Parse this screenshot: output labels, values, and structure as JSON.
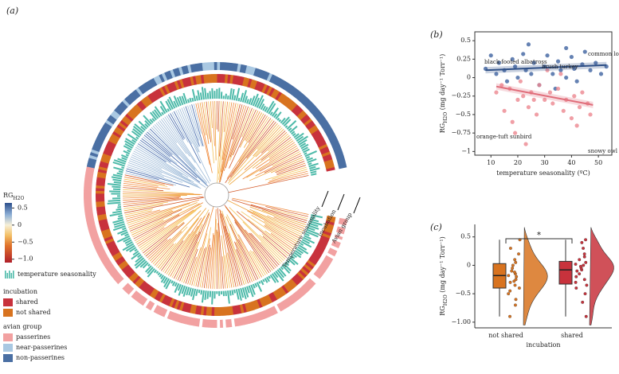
{
  "chart_data": [
    {
      "type": "phylogeny",
      "panel_label": "(a)",
      "legend_title": "RG",
      "legend_title_sub": "H2O",
      "clim": [
        -1.1,
        0.65
      ],
      "cticks": [
        0.5,
        0,
        {
          "value": -0.5,
          "label": "−0.5"
        },
        {
          "value": -1.0,
          "label": "−1.0"
        }
      ],
      "bars_label": "temperature seasonality",
      "bars_color": "#4dbaa9",
      "incubation_title": "incubation",
      "incubation": [
        {
          "name": "shared",
          "color": "#c8323c"
        },
        {
          "name": "not shared",
          "color": "#d8731f"
        }
      ],
      "group_title": "avian group",
      "groups": [
        {
          "name": "passerines",
          "color": "#f2a1a1"
        },
        {
          "name": "near-passerines",
          "color": "#a9c8e2"
        },
        {
          "name": "non-passerines",
          "color": "#4a6fa3"
        }
      ],
      "ring_labels": [
        "Temperature seasonality",
        "incubation",
        "Avian group"
      ]
    },
    {
      "type": "scatter",
      "panel_label": "(b)",
      "ylabel": "RG",
      "ylabel_sub": "H2O",
      "ylabel_unit": " (mg day⁻¹ Torr⁻¹)",
      "xlabel": "temperature seasonality (ºC)",
      "xlim": [
        4,
        55
      ],
      "xticks": [
        10,
        20,
        30,
        40,
        50
      ],
      "ylim": [
        -1.05,
        0.62
      ],
      "yticks": [
        0.5,
        0.25,
        0,
        {
          "value": -0.25,
          "label": "−0.25"
        },
        {
          "value": -0.5,
          "label": "−0.5"
        },
        {
          "value": -0.75,
          "label": "−0.75"
        },
        {
          "value": -1,
          "label": "−1"
        }
      ],
      "series": [
        {
          "color": "#3e63a0",
          "x": [
            8,
            10,
            12,
            13,
            15,
            16,
            18,
            19,
            20,
            22,
            23,
            25,
            26,
            28,
            30,
            31,
            33,
            35,
            36,
            38,
            40,
            41,
            42,
            44,
            45,
            47,
            49,
            51,
            53,
            38,
            34,
            24
          ],
          "values": [
            0.12,
            0.3,
            0.05,
            0.2,
            0.1,
            -0.05,
            0.25,
            0.15,
            0.0,
            0.32,
            0.1,
            0.05,
            0.2,
            -0.1,
            0.15,
            0.3,
            0.05,
            0.22,
            0.1,
            0.0,
            0.28,
            0.12,
            -0.05,
            0.18,
            0.35,
            0.1,
            0.2,
            0.05,
            0.15,
            0.4,
            -0.15,
            0.45
          ]
        },
        {
          "color": "#ec8790",
          "x": [
            12,
            14,
            15,
            17,
            18,
            20,
            21,
            22,
            24,
            25,
            27,
            28,
            30,
            32,
            33,
            35,
            37,
            38,
            40,
            41,
            43,
            44,
            46,
            47,
            19,
            23,
            36,
            42,
            26,
            31
          ],
          "values": [
            -0.2,
            -0.1,
            -0.45,
            -0.15,
            -0.6,
            -0.3,
            -0.05,
            -0.25,
            -0.4,
            -0.2,
            -0.5,
            -0.1,
            -0.3,
            -0.2,
            -0.35,
            -0.15,
            -0.45,
            -0.3,
            -0.55,
            -0.25,
            -0.4,
            -0.2,
            -0.35,
            -0.5,
            -0.75,
            -0.9,
            0.05,
            -0.65,
            -0.3,
            0.1
          ]
        }
      ],
      "lines": [
        {
          "color": "#2e4f86",
          "x": [
            8,
            53
          ],
          "values": [
            0.1,
            0.17
          ]
        },
        {
          "color": "#e06d7a",
          "x": [
            12,
            48
          ],
          "values": [
            -0.12,
            -0.37
          ]
        }
      ],
      "annotations": [
        "black-footed albatross",
        "brush turkey",
        "common loon",
        "orange-tuft sunbird",
        "snowy owl"
      ]
    },
    {
      "type": "box",
      "panel_label": "(c)",
      "ylabel": "RG",
      "ylabel_sub": "H2O",
      "ylabel_unit": " (mg day⁻¹ Torr⁻¹)",
      "xlabel": "incubation",
      "categories": [
        "not shared",
        "shared"
      ],
      "colors": [
        "#d8731f",
        "#c8323c"
      ],
      "ylim": [
        -1.1,
        0.72
      ],
      "yticks": [
        0.5,
        0,
        {
          "value": -0.5,
          "label": "−0.5"
        },
        {
          "value": -1.0,
          "label": "−1.00"
        }
      ],
      "q1": [
        -0.4,
        -0.33
      ],
      "median": [
        -0.18,
        -0.08
      ],
      "q3": [
        0.03,
        0.07
      ],
      "whisker_low": [
        -0.9,
        -0.9
      ],
      "whisker_high": [
        0.45,
        0.45
      ],
      "points": [
        [
          -0.9,
          -0.7,
          -0.6,
          -0.5,
          -0.45,
          -0.4,
          -0.35,
          -0.3,
          -0.25,
          -0.2,
          -0.18,
          -0.15,
          -0.1,
          -0.05,
          0.0,
          0.05,
          0.1,
          0.2,
          0.3,
          0.45,
          -0.28,
          -0.12
        ],
        [
          -0.9,
          -0.65,
          -0.5,
          -0.4,
          -0.35,
          -0.3,
          -0.25,
          -0.15,
          -0.1,
          -0.08,
          -0.05,
          0.0,
          0.02,
          0.05,
          0.1,
          0.15,
          0.2,
          0.3,
          0.4,
          0.45,
          -0.2,
          -0.02
        ]
      ],
      "significance": "*"
    }
  ]
}
